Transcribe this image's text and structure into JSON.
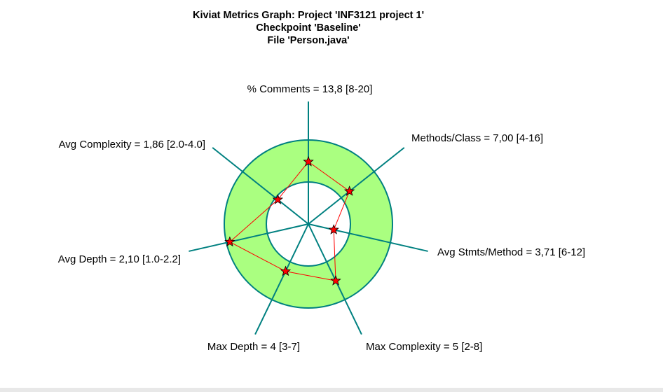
{
  "chart_data": {
    "type": "radar",
    "title_lines": [
      "Kiviat Metrics Graph: Project 'INF3121 project 1'",
      "Checkpoint 'Baseline'",
      "File 'Person.java'"
    ],
    "axes": [
      {
        "label": "% Comments = 13,8 [8-20]",
        "value": 13.8,
        "range": [
          8,
          20
        ]
      },
      {
        "label": "Methods/Class = 7,00 [4-16]",
        "value": 7.0,
        "range": [
          4,
          16
        ]
      },
      {
        "label": "Avg Stmts/Method = 3,71 [6-12]",
        "value": 3.71,
        "range": [
          6,
          12
        ]
      },
      {
        "label": "Max Complexity = 5 [2-8]",
        "value": 5,
        "range": [
          2,
          8
        ]
      },
      {
        "label": "Max Depth = 4 [3-7]",
        "value": 4,
        "range": [
          3,
          7
        ]
      },
      {
        "label": "Avg Depth = 2,10 [1.0-2.2]",
        "value": 2.1,
        "range": [
          1.0,
          2.2
        ]
      },
      {
        "label": "Avg Complexity = 1,86 [2.0-4.0]",
        "value": 1.86,
        "range": [
          2.0,
          4.0
        ]
      }
    ],
    "colors": {
      "band": "#aaff80",
      "band_edge": "#008080",
      "axis": "#008080",
      "polygon": "#ff0000",
      "marker": "#ff0000"
    },
    "marker": "star"
  }
}
